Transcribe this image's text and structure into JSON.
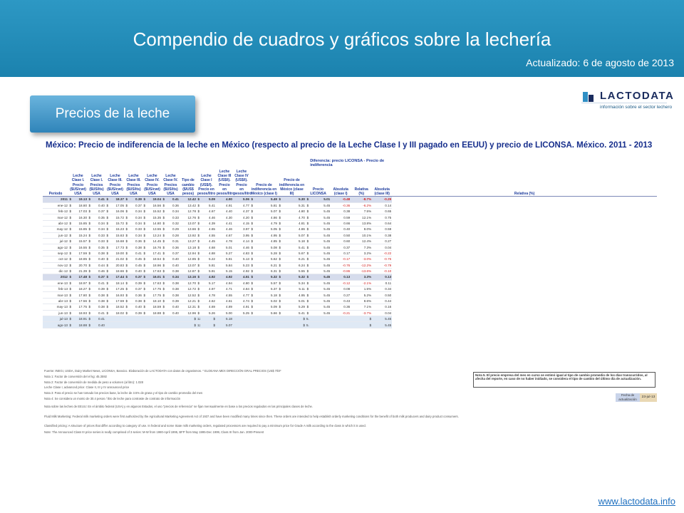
{
  "header": {
    "title": "Compendio de cuadros y gráficos sobre la lechería",
    "updated": "Actualizado: 6 de agosto de 2013"
  },
  "section_tab": {
    "label": "Precios de la leche"
  },
  "logo": {
    "name": "LACTODATA",
    "tagline": "información sobre el sector lechero"
  },
  "table": {
    "title": "México: Precio de indiferencia de la leche en México (respecto al precio de la Leche Clase I y III pagado en EEUU) y precio de LICONSA. México. 2011 - 2013",
    "diff_group": "Diferencia: precio LICONSA - Precio de indiferencia",
    "columns": [
      "Período",
      "Leche Clase I. Precio ($US/cwt) USA",
      "Leche Clase I. Precios ($US/lts) USA",
      "Leche Clase III. Precio ($US/cwt) USA",
      "Leche Clase III. Precios ($US/lts) USA",
      "Leche Clase IV. Precio ($US/cwt) USA",
      "Leche Clase IV. Precios ($US/lts) USA",
      "Tipo de cambio ($/US$ pesos)",
      "Leche Clase I (US$/l). Precio en pesos/litro",
      "Leche Clase III (US$/l). Precio en pesos/litro",
      "Leche Clase IV (US$/l). Precio en pesos/litro",
      "Precio de indiferencia en México (clase I)",
      "Precio de indiferencia en México (clase III)",
      "Precio LICONSA",
      "Absoluta (clase I)",
      "Relativa (%)",
      "Absoluta (clase III)",
      "Relativa (%)"
    ],
    "rows": [
      {
        "p": "2011",
        "yr": true,
        "c": [
          "$",
          "19.13",
          "$",
          "0.41",
          "$",
          "18.37",
          "$",
          "0.39",
          "$",
          "19.04",
          "$",
          "0.41",
          "12.42",
          "$",
          "5.09",
          "4.90",
          "5.06",
          "$",
          "5.49",
          "$",
          "5.30",
          "$",
          "5.01",
          "-0.48",
          "-8.7%",
          "-0.29",
          "-4.2%"
        ]
      },
      {
        "p": "ene-12",
        "c": [
          "$",
          "18.80",
          "$",
          "0.40",
          "$",
          "17.05",
          "$",
          "0.37",
          "$",
          "16.56",
          "$",
          "0.36",
          "13.42",
          "$",
          "5.41",
          "4.91",
          "4.77",
          "$",
          "5.81",
          "$",
          "5.31",
          "$",
          "5.45",
          "-0.36",
          "-6.2%",
          "0.14",
          "2.7%"
        ]
      },
      {
        "p": "feb-12",
        "c": [
          "$",
          "17.03",
          "$",
          "0.37",
          "$",
          "16.06",
          "$",
          "0.34",
          "$",
          "15.52",
          "$",
          "0.34",
          "12.78",
          "$",
          "4.67",
          "4.40",
          "4.37",
          "$",
          "5.07",
          "$",
          "4.80",
          "$",
          "5.45",
          "0.38",
          "7.5%",
          "0.65",
          "13.5%"
        ]
      },
      {
        "p": "mar-12",
        "c": [
          "$",
          "16.30",
          "$",
          "0.35",
          "$",
          "15.72",
          "$",
          "0.34",
          "$",
          "15.35",
          "$",
          "0.33",
          "12.76",
          "$",
          "4.46",
          "4.30",
          "4.20",
          "$",
          "4.86",
          "$",
          "4.70",
          "$",
          "5.45",
          "0.59",
          "12.1%",
          "0.75",
          "15.9%"
        ]
      },
      {
        "p": "abr-12",
        "c": [
          "$",
          "15.85",
          "$",
          "0.34",
          "$",
          "15.72",
          "$",
          "0.34",
          "$",
          "14.80",
          "$",
          "0.32",
          "13.07",
          "$",
          "4.39",
          "4.41",
          "4.15",
          "$",
          "4.79",
          "$",
          "4.81",
          "$",
          "5.45",
          "0.66",
          "13.8%",
          "0.64",
          "13.4%"
        ]
      },
      {
        "p": "may-12",
        "c": [
          "$",
          "15.85",
          "$",
          "0.34",
          "$",
          "15.23",
          "$",
          "0.33",
          "$",
          "13.55",
          "$",
          "0.29",
          "13.66",
          "$",
          "4.65",
          "4.46",
          "3.97",
          "$",
          "5.05",
          "$",
          "4.86",
          "$",
          "5.45",
          "0.40",
          "8.0%",
          "0.59",
          "12.1%"
        ]
      },
      {
        "p": "jun-12",
        "c": [
          "$",
          "15.24",
          "$",
          "0.33",
          "$",
          "15.63",
          "$",
          "0.34",
          "$",
          "13.24",
          "$",
          "0.28",
          "13.92",
          "$",
          "4.55",
          "4.67",
          "3.95",
          "$",
          "4.95",
          "$",
          "5.07",
          "$",
          "5.45",
          "0.50",
          "10.1%",
          "0.38",
          "7.6%"
        ]
      },
      {
        "p": "jul-12",
        "c": [
          "$",
          "15.57",
          "$",
          "0.33",
          "$",
          "16.68",
          "$",
          "0.36",
          "$",
          "14.45",
          "$",
          "0.31",
          "13.27",
          "$",
          "4.45",
          "4.78",
          "4.14",
          "$",
          "4.85",
          "$",
          "5.18",
          "$",
          "5.45",
          "0.60",
          "12.4%",
          "0.27",
          "5.2%"
        ]
      },
      {
        "p": "ago-12",
        "c": [
          "$",
          "16.55",
          "$",
          "0.35",
          "$",
          "17.73",
          "$",
          "0.38",
          "$",
          "16.76",
          "$",
          "0.36",
          "13.18",
          "$",
          "4.68",
          "5.01",
          "4.46",
          "$",
          "5.08",
          "$",
          "5.41",
          "$",
          "5.45",
          "0.37",
          "7.3%",
          "0.04",
          "0.7%"
        ]
      },
      {
        "p": "sep-12",
        "c": [
          "$",
          "17.59",
          "$",
          "0.38",
          "$",
          "19.00",
          "$",
          "0.41",
          "$",
          "17.41",
          "$",
          "0.37",
          "12.94",
          "$",
          "4.88",
          "5.27",
          "4.83",
          "$",
          "5.28",
          "$",
          "5.67",
          "$",
          "5.45",
          "0.17",
          "3.2%",
          "-0.22",
          "-3.9%"
        ]
      },
      {
        "p": "oct-12",
        "c": [
          "$",
          "18.85",
          "$",
          "0.40",
          "$",
          "21.02",
          "$",
          "0.45",
          "$",
          "18.54",
          "$",
          "0.40",
          "12.85",
          "$",
          "5.22",
          "5.81",
          "5.13",
          "$",
          "5.62",
          "$",
          "6.21",
          "$",
          "5.45",
          "-0.17",
          "-3.0%",
          "-0.76",
          "-12.3%"
        ]
      },
      {
        "p": "nov-12",
        "c": [
          "$",
          "20.70",
          "$",
          "0.44",
          "$",
          "20.83",
          "$",
          "0.45",
          "$",
          "18.96",
          "$",
          "0.40",
          "13.07",
          "$",
          "5.81",
          "5.84",
          "5.23",
          "$",
          "6.21",
          "$",
          "6.24",
          "$",
          "5.45",
          "-0.76",
          "-12.2%",
          "-0.79",
          "-12.7%"
        ]
      },
      {
        "p": "dic-12",
        "c": [
          "$",
          "21.39",
          "$",
          "0.46",
          "$",
          "18.66",
          "$",
          "0.40",
          "$",
          "17.63",
          "$",
          "0.38",
          "12.87",
          "$",
          "5.91",
          "5.15",
          "4.92",
          "$",
          "6.31",
          "$",
          "5.55",
          "$",
          "5.45",
          "-0.86",
          "-13.6%",
          "-0.10",
          "-1.8%"
        ]
      },
      {
        "p": "2012",
        "yr": true,
        "c": [
          "$",
          "17.48",
          "$",
          "0.37",
          "$",
          "17.44",
          "$",
          "0.37",
          "$",
          "16.01",
          "$",
          "0.34",
          "13.16",
          "$",
          "4.92",
          "4.92",
          "4.51",
          "$",
          "5.32",
          "$",
          "5.32",
          "$",
          "5.45",
          "0.13",
          "3.3%",
          "0.13",
          "3.3%"
        ]
      },
      {
        "p": "ene-13",
        "c": [
          "$",
          "18.97",
          "$",
          "0.41",
          "$",
          "18.14",
          "$",
          "0.39",
          "$",
          "17.63",
          "$",
          "0.38",
          "12.70",
          "$",
          "5.17",
          "4.94",
          "4.80",
          "$",
          "5.57",
          "$",
          "5.34",
          "$",
          "5.45",
          "-0.12",
          "-2.1%",
          "0.11",
          "2.0%"
        ]
      },
      {
        "p": "feb-13",
        "c": [
          "$",
          "18.27",
          "$",
          "0.39",
          "$",
          "17.25",
          "$",
          "0.37",
          "$",
          "17.75",
          "$",
          "0.38",
          "12.72",
          "$",
          "4.97",
          "4.71",
          "4.84",
          "$",
          "5.37",
          "$",
          "5.11",
          "$",
          "5.45",
          "0.08",
          "1.5%",
          "0.34",
          "6.7%"
        ]
      },
      {
        "p": "mar-13",
        "c": [
          "$",
          "17.80",
          "$",
          "0.38",
          "$",
          "16.93",
          "$",
          "0.36",
          "$",
          "17.75",
          "$",
          "0.38",
          "12.52",
          "$",
          "4.78",
          "4.55",
          "4.77",
          "$",
          "5.18",
          "$",
          "4.95",
          "$",
          "5.45",
          "0.27",
          "5.2%",
          "0.50",
          "10.1%"
        ]
      },
      {
        "p": "abr-13",
        "c": [
          "$",
          "17.56",
          "$",
          "0.38",
          "$",
          "17.59",
          "$",
          "0.38",
          "$",
          "18.10",
          "$",
          "0.39",
          "12.21",
          "$",
          "4.62",
          "4.61",
          "4.74",
          "$",
          "5.02",
          "$",
          "5.01",
          "$",
          "5.45",
          "0.43",
          "8.6%",
          "0.44",
          "8.9%"
        ]
      },
      {
        "p": "may-13",
        "c": [
          "$",
          "17.75",
          "$",
          "0.38",
          "$",
          "18.52",
          "$",
          "0.40",
          "$",
          "18.59",
          "$",
          "0.40",
          "12.31",
          "$",
          "4.69",
          "4.89",
          "4.91",
          "$",
          "5.09",
          "$",
          "5.29",
          "$",
          "5.45",
          "0.36",
          "7.1%",
          "0.16",
          "3.0%"
        ]
      },
      {
        "p": "jun-13",
        "c": [
          "$",
          "18.93",
          "$",
          "0.41",
          "$",
          "18.02",
          "$",
          "0.39",
          "$",
          "18.88",
          "$",
          "0.40",
          "12.96",
          "$",
          "5.26",
          "5.00",
          "5.25",
          "$",
          "5.66",
          "$",
          "5.41",
          "$",
          "5.45",
          "-0.21",
          "-3.7%",
          "0.04",
          "0.8%"
        ]
      },
      {
        "p": "jul-13",
        "part": true,
        "c": [
          "$",
          "18.91",
          "$",
          "0.41",
          "",
          "",
          "",
          "",
          "",
          "",
          "",
          "",
          "$",
          "12.78",
          "$",
          "5.18",
          "",
          "",
          "",
          "",
          "$",
          "5.58",
          "",
          "",
          "$",
          "5.45",
          "-0.13",
          "-2.4%",
          "",
          ""
        ]
      },
      {
        "p": "ago-13",
        "part": true,
        "c": [
          "$",
          "18.88",
          "$",
          "0.40",
          "",
          "",
          "",
          "",
          "",
          "",
          "",
          "",
          "$",
          "12.81",
          "$",
          "5.07",
          "",
          "",
          "",
          "",
          "$",
          "5.47",
          "",
          "",
          "$",
          "5.45",
          "-0.02",
          "-0.3%",
          "",
          ""
        ]
      }
    ]
  },
  "note5": "Nota 5. El precio empresa del mes en curso se estimó igual al tipo de cambio promedio de los días transcurridos, al afecha del reporte, en caso de no haber inidiado, se considera el tipo de cambio del último día de actualización.",
  "fecha": {
    "label": "Fecha de actualización",
    "value": "23-jul-13"
  },
  "notes": {
    "source": "Fuente: INEGI, USDA, Dairy Market News, LICONSA, Banxico. Elaboración de LACTODATA con datos de organismos. * ELOEANA MEX DIRECCIÓN GRAL PRECIOS (US$ 7/EF",
    "n1": "Nota 1: Factor de conversión del el kg: 45.3592",
    "n2": "Nota 2: Factor de conversión de medida de peso a volumen (al litro): 1.028",
    "n3": "Nota 3: Para el precio se han tomado los precios base, la leche de 3.5% de grasa y el tipo de cambio promedio del mes",
    "n4": "Nota 4: Se considera un monto de 30.4 pesos / litro de leche para contraste de contrato de información",
    "usa_dairy": "Nota sobre las leches de EEUU: En el ámbito federal (USA) y en algunos Estados, el uso \"precios de referencia\" se fijan mensualmente en base a los precios regulados en las principales clases de leche.",
    "fluid_milk": "Fluid Milk Marketing: Federal milk marketing orders were first authorized by the Agricultural Marketing Agreement Act of 1937 and have been modified many times since then. These orders are intended to help establish orderly marketing conditions for the benefit of both milk producers and dairy product consumers.",
    "classified": "Classified pricing: A structure of prices that differ according to category of use. In federal and some State milk marketing orders, regulated processors are required to pay a minimum price for Grade A milk according to the class in which it is used.",
    "announced": "Note: The Announced Class III price series is really comprised of 3 series: M-W from 1980-April 1995, BFP from May 1995-Dec 1999, Class III from Jan. 2000-Present",
    "leche_clase": "Leche Clase I, advanced price: Clase II, III y IV announced price"
  },
  "footer": {
    "site": "www.lactodata.info"
  }
}
